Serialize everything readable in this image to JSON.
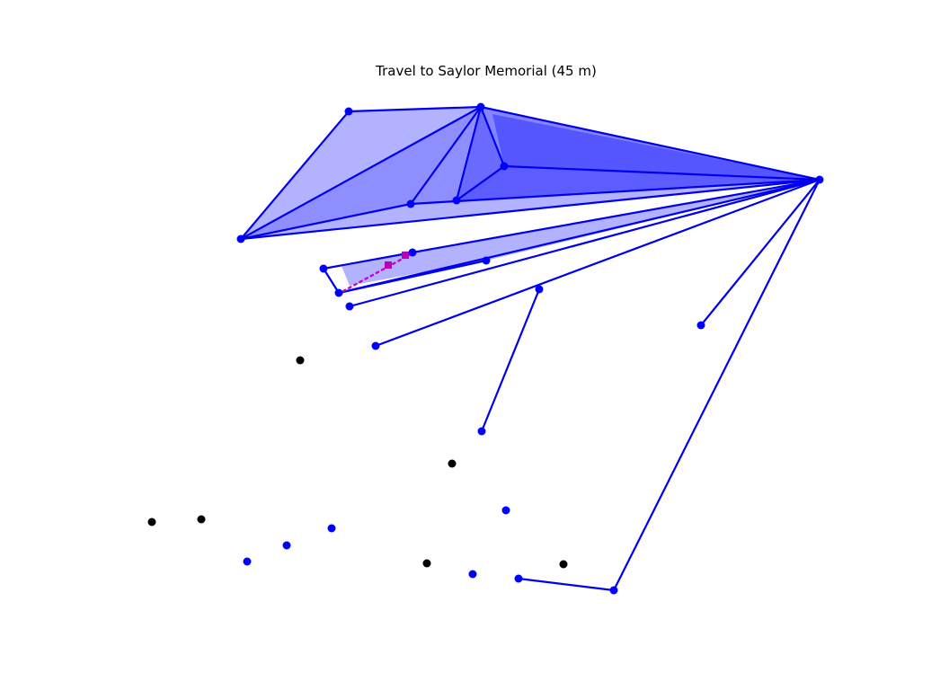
{
  "title": "Travel to Saylor Memorial (45 m)",
  "colors": {
    "network": "#0000ee",
    "node_active": "#0000ff",
    "node_inactive": "#000000",
    "route": "#cc00cc",
    "fill": "#0000ff"
  }
}
